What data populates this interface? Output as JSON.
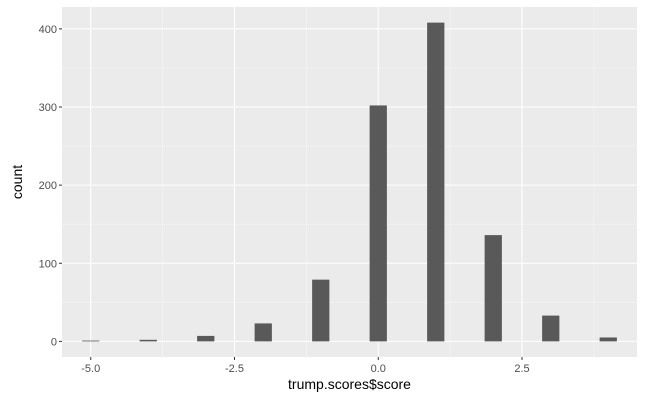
{
  "chart_data": {
    "type": "bar",
    "title": "",
    "xlabel": "trump.scores$score",
    "ylabel": "count",
    "x": [
      -5,
      -4,
      -3,
      -2,
      -1,
      0,
      1,
      2,
      3,
      4
    ],
    "values": [
      1,
      2,
      7,
      23,
      79,
      302,
      408,
      136,
      33,
      5
    ],
    "xlim": [
      -5.5,
      4.5
    ],
    "ylim": [
      -20,
      428
    ],
    "x_ticks": [
      -5.0,
      -2.5,
      0.0,
      2.5
    ],
    "x_tick_labels": [
      "-5.0",
      "-2.5",
      "0.0",
      "2.5"
    ],
    "y_ticks": [
      0,
      100,
      200,
      300,
      400
    ],
    "y_tick_labels": [
      "0",
      "100",
      "200",
      "300",
      "400"
    ],
    "grid": true,
    "legend": "none",
    "colors": {
      "bar": "#595959",
      "panel": "#ebebeb",
      "grid_major": "#ffffff",
      "grid_minor": "#f5f5f5",
      "tick": "#333333"
    }
  }
}
